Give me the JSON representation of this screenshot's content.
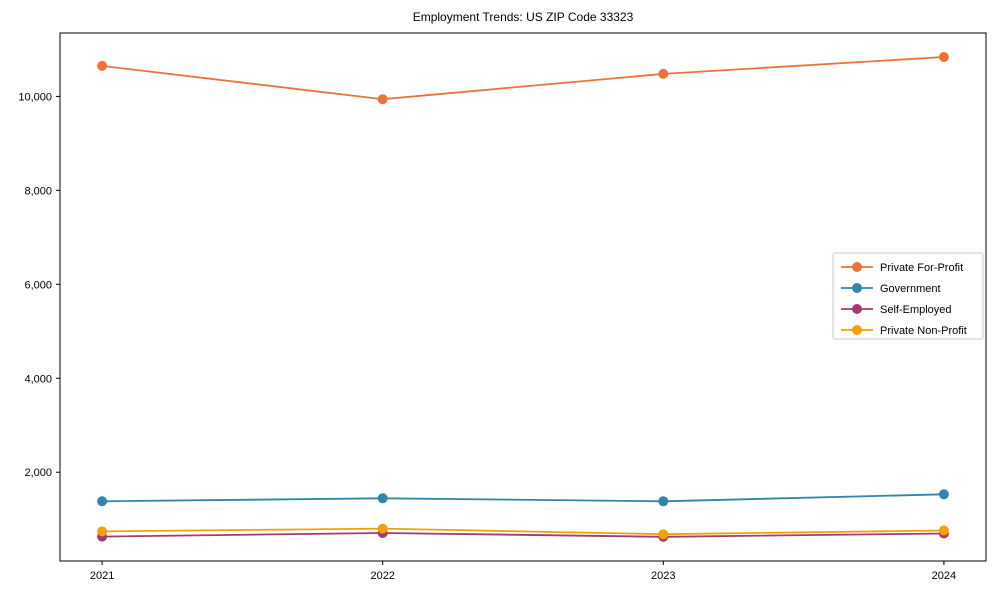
{
  "figure": {
    "background": "#ffffff",
    "text_color": "#000000",
    "axis_color": "#000000",
    "legend_border_color": "#c9c9c9"
  },
  "chart_data": {
    "type": "line",
    "title": "Employment Trends: US ZIP Code 33323",
    "xlabel": "",
    "ylabel": "",
    "x": [
      2021,
      2022,
      2023,
      2024
    ],
    "x_tick_labels": [
      "2021",
      "2022",
      "2023",
      "2024"
    ],
    "series": [
      {
        "name": "Private For-Profit",
        "color": "#E8743C",
        "values": [
          10650,
          9940,
          10480,
          10840
        ]
      },
      {
        "name": "Government",
        "color": "#2E86AB",
        "values": [
          1380,
          1445,
          1380,
          1530
        ]
      },
      {
        "name": "Self-Employed",
        "color": "#A23B72",
        "values": [
          630,
          705,
          625,
          695
        ]
      },
      {
        "name": "Private Non-Profit",
        "color": "#F2A104",
        "values": [
          740,
          800,
          680,
          760
        ]
      }
    ],
    "xlim": [
      2020.85,
      2024.15
    ],
    "ylim": [
      110,
      11350
    ],
    "yticks": [
      2000,
      4000,
      6000,
      8000,
      10000
    ],
    "ytick_labels": [
      "2,000",
      "4,000",
      "6,000",
      "8,000",
      "10,000"
    ],
    "grid": false,
    "marker": "circle",
    "legend": {
      "position": "right-middle",
      "entries": [
        "Private For-Profit",
        "Government",
        "Self-Employed",
        "Private Non-Profit"
      ]
    }
  }
}
